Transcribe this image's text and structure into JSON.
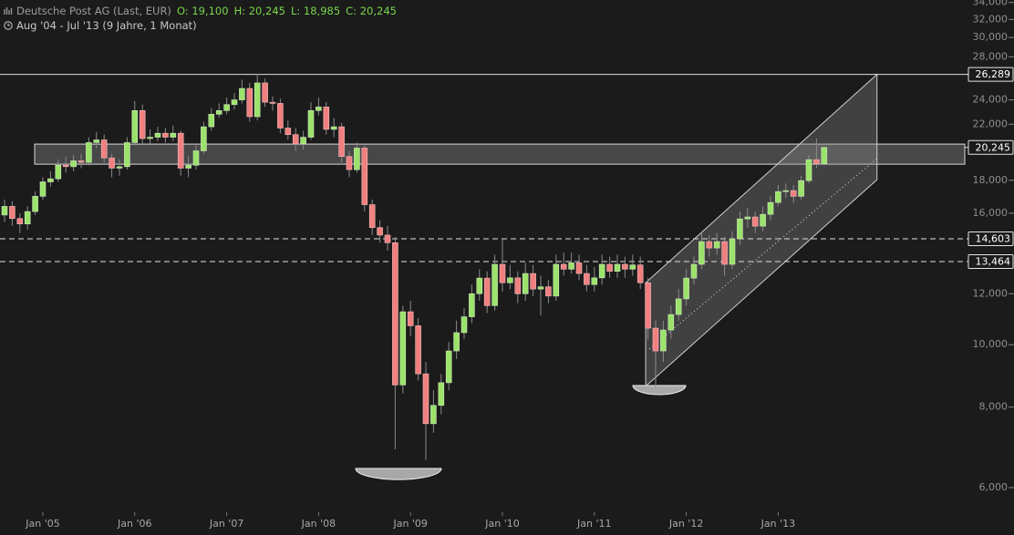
{
  "chart_data": {
    "type": "candlestick",
    "title": "Deutsche Post AG (Last, EUR)",
    "ohlc_labels": [
      "O: 19,100",
      "H: 20,245",
      "L: 18,985",
      "C: 20,245"
    ],
    "subtitle": "Aug '04 - Jul '13 (9 Jahre, 1 Monat)",
    "categories": [
      null,
      null,
      null,
      null,
      null,
      "Jan '05",
      null,
      null,
      null,
      null,
      null,
      null,
      null,
      null,
      null,
      null,
      null,
      "Jan '06",
      null,
      null,
      null,
      null,
      null,
      null,
      null,
      null,
      null,
      null,
      null,
      "Jan '07",
      null,
      null,
      null,
      null,
      null,
      null,
      null,
      null,
      null,
      null,
      null,
      "Jan '08",
      null,
      null,
      null,
      null,
      null,
      null,
      null,
      null,
      null,
      null,
      null,
      "Jan '09",
      null,
      null,
      null,
      null,
      null,
      null,
      null,
      null,
      null,
      null,
      null,
      "Jan '10",
      null,
      null,
      null,
      null,
      null,
      null,
      null,
      null,
      null,
      null,
      null,
      "Jan '11",
      null,
      null,
      null,
      null,
      null,
      null,
      null,
      null,
      null,
      null,
      null,
      "Jan '12",
      null,
      null,
      null,
      null,
      null,
      null,
      null,
      null,
      null,
      null,
      null,
      "Jan '13",
      null,
      null,
      null,
      null,
      null,
      null
    ],
    "open": [
      15900,
      16400,
      15700,
      15400,
      16100,
      17000,
      17900,
      18100,
      19000,
      18900,
      19300,
      19200,
      20600,
      20800,
      19500,
      18800,
      18900,
      20600,
      23100,
      20900,
      21000,
      21300,
      21000,
      21300,
      18800,
      19000,
      20000,
      21800,
      22800,
      23100,
      23600,
      24000,
      25000,
      22600,
      25500,
      23800,
      23700,
      21700,
      21200,
      20500,
      21000,
      23100,
      23400,
      21600,
      21800,
      19600,
      18700,
      20200,
      16500,
      15200,
      14800,
      14400,
      8660,
      11250,
      10700,
      9010,
      7540,
      8050,
      8730,
      9780,
      10440,
      11050,
      12000,
      12690,
      11500,
      13330,
      12480,
      12700,
      12000,
      12900,
      12200,
      12300,
      11900,
      13330,
      13100,
      13400,
      12900,
      12400,
      12700,
      13330,
      13000,
      13330,
      13100,
      13300,
      12480,
      10610,
      9780,
      10540,
      11140,
      11780,
      12690,
      13330,
      14460,
      14130,
      14460,
      13330,
      14600,
      15680,
      15790,
      15280,
      15940,
      16630,
      17290,
      17350,
      17000,
      17980,
      19380,
      19100
    ],
    "high": [
      16800,
      16700,
      16000,
      16400,
      17300,
      18200,
      18600,
      19400,
      19600,
      19700,
      19800,
      21000,
      21400,
      21200,
      19800,
      19400,
      21000,
      23900,
      23600,
      21600,
      21800,
      21700,
      21900,
      21500,
      19600,
      20400,
      22200,
      23300,
      23700,
      24200,
      24600,
      25800,
      25500,
      26289,
      25900,
      24300,
      24100,
      22300,
      21700,
      21500,
      23800,
      24200,
      23800,
      22500,
      22100,
      20000,
      20600,
      20400,
      16800,
      15600,
      15300,
      14700,
      11500,
      11700,
      11000,
      9400,
      8500,
      9000,
      10100,
      10900,
      11400,
      12400,
      13100,
      13000,
      13800,
      14600,
      13300,
      13000,
      13400,
      13300,
      12800,
      12600,
      13800,
      13900,
      13900,
      13800,
      13300,
      13200,
      13800,
      13700,
      13800,
      13700,
      13800,
      13700,
      12700,
      10900,
      10900,
      11500,
      12200,
      13100,
      13700,
      14900,
      14800,
      14900,
      14700,
      15000,
      16100,
      16300,
      16100,
      16400,
      17000,
      17700,
      17800,
      17700,
      18300,
      19700,
      20900,
      20245
    ],
    "low": [
      15500,
      15300,
      14900,
      15100,
      15900,
      16800,
      17600,
      17900,
      18500,
      18600,
      18800,
      19000,
      20200,
      19200,
      18200,
      18300,
      18700,
      20400,
      20500,
      20400,
      20700,
      20600,
      20700,
      18300,
      18200,
      18700,
      19800,
      21500,
      22500,
      22800,
      23200,
      23700,
      22200,
      22300,
      23400,
      23100,
      21300,
      20800,
      20000,
      20100,
      20800,
      22700,
      21200,
      21000,
      19200,
      18200,
      18500,
      16100,
      14800,
      14400,
      14000,
      6880,
      8400,
      10300,
      8800,
      6620,
      7300,
      7800,
      8500,
      9500,
      10200,
      10800,
      11700,
      11200,
      11300,
      12100,
      12200,
      11600,
      11700,
      11900,
      11100,
      11600,
      11700,
      12800,
      12900,
      12600,
      12100,
      12100,
      12400,
      12700,
      12700,
      12700,
      12800,
      12200,
      10200,
      8600,
      9400,
      10200,
      10900,
      11500,
      12400,
      13100,
      13700,
      13800,
      12800,
      13100,
      14300,
      15200,
      14900,
      15000,
      15600,
      16400,
      16900,
      16600,
      16800,
      17800,
      18800,
      18985
    ],
    "close": [
      16400,
      15700,
      15400,
      16100,
      17000,
      17900,
      18100,
      19000,
      18900,
      19300,
      19200,
      20600,
      20800,
      19500,
      18800,
      18900,
      20600,
      23100,
      20900,
      21000,
      21300,
      21000,
      21300,
      18800,
      19000,
      20000,
      21800,
      22800,
      23100,
      23600,
      24000,
      25000,
      22600,
      25500,
      23800,
      23700,
      21700,
      21200,
      20500,
      21000,
      23100,
      23400,
      21600,
      21800,
      19600,
      18700,
      20200,
      16500,
      15200,
      14800,
      14400,
      8660,
      11250,
      10700,
      9010,
      7540,
      8050,
      8730,
      9780,
      10440,
      11050,
      12000,
      12690,
      11500,
      13330,
      12480,
      12700,
      12000,
      12900,
      12200,
      12300,
      11900,
      13330,
      13100,
      13400,
      12900,
      12400,
      12700,
      13330,
      13000,
      13330,
      13100,
      13300,
      12480,
      10610,
      9780,
      10540,
      11140,
      11780,
      12690,
      13330,
      14460,
      14130,
      14460,
      13330,
      14600,
      15680,
      15790,
      15280,
      15940,
      16630,
      17290,
      17350,
      17000,
      17980,
      19380,
      19100,
      20245
    ],
    "up_color": "#9be36a",
    "down_color": "#f08080",
    "log_scale": true,
    "ylim": [
      5530,
      34300
    ],
    "yticks": [
      {
        "value": 6000,
        "label": "6,000"
      },
      {
        "value": 8000,
        "label": "8,000"
      },
      {
        "value": 10000,
        "label": "10,000"
      },
      {
        "value": 12000,
        "label": "12,000"
      },
      {
        "value": 16000,
        "label": "16,000"
      },
      {
        "value": 18000,
        "label": "18,000"
      },
      {
        "value": 22000,
        "label": "22,000"
      },
      {
        "value": 24000,
        "label": "24,000"
      },
      {
        "value": 28000,
        "label": "28,000"
      },
      {
        "value": 30000,
        "label": "30,000"
      },
      {
        "value": 32000,
        "label": "32,000"
      },
      {
        "value": 34000,
        "label": "34,000"
      }
    ],
    "hlines": [
      {
        "value": 26289,
        "label": "26,289",
        "style": "solid"
      },
      {
        "value": 20245,
        "label": "20,245",
        "style": "solid"
      },
      {
        "value": 14603,
        "label": "14,603",
        "style": "dashed"
      },
      {
        "value": 13464,
        "label": "13,464",
        "style": "dashed"
      }
    ],
    "zone": [
      19070,
      20490
    ],
    "channel": {
      "x": [
        83.7,
        113.9
      ],
      "upper": [
        12480,
        26289
      ],
      "lower": [
        8620,
        18040
      ],
      "middle": [
        9850,
        19450
      ]
    }
  }
}
